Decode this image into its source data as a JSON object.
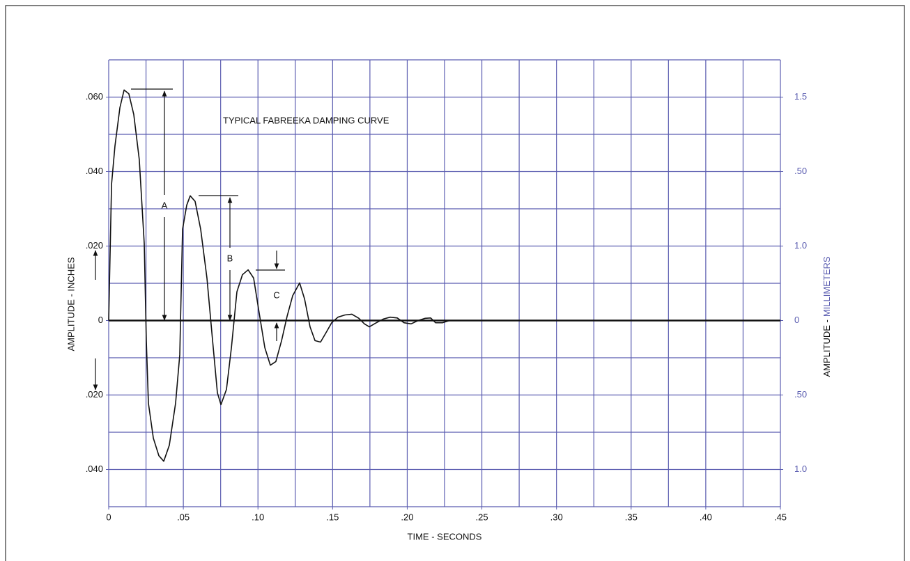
{
  "chart_data": {
    "type": "line",
    "title": "TYPICAL FABREEKA DAMPING CURVE",
    "xlabel": "TIME - SECONDS",
    "ylabel": "AMPLITUDE - INCHES",
    "y2label_prefix": "AMPLITUDE -",
    "y2label_unit": "MILLIMETERS",
    "annotations": [
      "A",
      "B",
      "C"
    ],
    "color": "#111111",
    "grid_color": "#5a5cb0",
    "xlim": [
      0,
      0.45
    ],
    "ylim": [
      -0.05,
      0.07
    ],
    "y2lim": [
      -0.05,
      0.07
    ],
    "xticks": [
      0,
      {
        "value": 0.05,
        "label": ".05"
      },
      {
        "value": 0.1,
        "label": ".10"
      },
      {
        "value": 0.15,
        "label": ".15"
      },
      {
        "value": 0.2,
        "label": ".20"
      },
      {
        "value": 0.25,
        "label": ".25"
      },
      {
        "value": 0.3,
        "label": ".30"
      },
      {
        "value": 0.35,
        "label": ".35"
      },
      {
        "value": 0.4,
        "label": ".40"
      },
      {
        "value": 0.45,
        "label": ".45"
      }
    ],
    "yticks": [
      {
        "value": 0.06,
        "label": ".060"
      },
      {
        "value": 0.04,
        "label": ".040"
      },
      {
        "value": 0.02,
        "label": ".020"
      },
      0,
      {
        "value": -0.02,
        "label": ".020"
      },
      {
        "value": -0.04,
        "label": ".040"
      }
    ],
    "y2ticks": [
      {
        "value": 0.06,
        "label": "1.5"
      },
      {
        "value": 0.04,
        "label": ".50"
      },
      {
        "value": 0.02,
        "label": "1.0"
      },
      0,
      {
        "value": -0.02,
        "label": ".50"
      },
      {
        "value": -0.04,
        "label": "1.0"
      }
    ],
    "xgrid": [
      0,
      0.025,
      0.05,
      0.075,
      0.1,
      0.125,
      0.15,
      0.175,
      0.2,
      0.225,
      0.25,
      0.275,
      0.3,
      0.325,
      0.35,
      0.375,
      0.4,
      0.425,
      0.45
    ],
    "ygrid": [
      -0.05,
      -0.04,
      -0.03,
      -0.02,
      -0.01,
      0.01,
      0.02,
      0.03,
      0.04,
      0.05,
      0.06,
      0.07
    ],
    "x": [
      0,
      0.0019,
      0.0042,
      0.0075,
      0.0103,
      0.0135,
      0.0168,
      0.0205,
      0.0238,
      0.0252,
      0.0266,
      0.0299,
      0.0336,
      0.0369,
      0.0406,
      0.0448,
      0.0476,
      0.0495,
      0.0523,
      0.0546,
      0.0579,
      0.0616,
      0.0658,
      0.0696,
      0.0728,
      0.0752,
      0.0789,
      0.0822,
      0.0859,
      0.0896,
      0.0934,
      0.0971,
      0.1008,
      0.1046,
      0.1083,
      0.112,
      0.1158,
      0.1195,
      0.1233,
      0.1279,
      0.1312,
      0.1349,
      0.1382,
      0.1419,
      0.1457,
      0.1494,
      0.1536,
      0.1583,
      0.1629,
      0.1676,
      0.1713,
      0.1746,
      0.1793,
      0.1839,
      0.1886,
      0.1933,
      0.1979,
      0.2026,
      0.2073,
      0.212,
      0.2157,
      0.219,
      0.2236,
      0.2283,
      0.2353
    ],
    "values": [
      0,
      0.0366,
      0.0469,
      0.0572,
      0.0619,
      0.0609,
      0.0553,
      0.0432,
      0.0207,
      -0.0054,
      -0.0222,
      -0.0316,
      -0.0363,
      -0.0378,
      -0.0335,
      -0.0222,
      -0.0092,
      0.0245,
      0.031,
      0.0335,
      0.032,
      0.0245,
      0.0114,
      -0.0054,
      -0.0194,
      -0.0226,
      -0.0185,
      -0.0073,
      0.0077,
      0.0123,
      0.0136,
      0.0114,
      0.0021,
      -0.0073,
      -0.012,
      -0.011,
      -0.0054,
      0.0011,
      0.0067,
      0.0101,
      0.0058,
      -0.0017,
      -0.0054,
      -0.0058,
      -0.0032,
      -0.0006,
      0.0009,
      0.0015,
      0.0017,
      0.0006,
      -0.0009,
      -0.0017,
      -0.0006,
      0.0004,
      0.0009,
      0.0007,
      -0.0006,
      -0.0009,
      0,
      0.0006,
      0.0007,
      -0.0006,
      -0.0006,
      0,
      0
    ]
  }
}
